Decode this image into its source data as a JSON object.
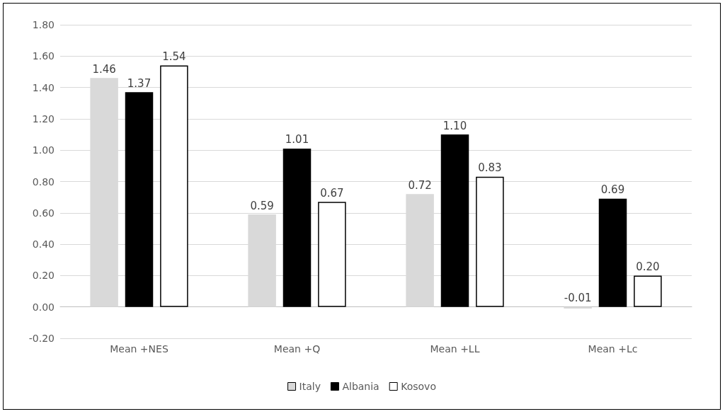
{
  "chart_data": {
    "type": "bar",
    "categories": [
      "Mean +NES",
      "Mean +Q",
      "Mean +LL",
      "Mean +Lc"
    ],
    "series": [
      {
        "name": "Italy",
        "color": "#d9d9d9",
        "values": [
          1.46,
          0.59,
          0.72,
          -0.01
        ],
        "value_labels": [
          "1.46",
          "0.59",
          "0.72",
          "-0.01"
        ]
      },
      {
        "name": "Albania",
        "color": "#000000",
        "values": [
          1.37,
          1.01,
          1.1,
          0.69
        ],
        "value_labels": [
          "1.37",
          "1.01",
          "1.10",
          "0.69"
        ]
      },
      {
        "name": "Kosovo",
        "color": "#ffffff",
        "values": [
          1.54,
          0.67,
          0.83,
          0.2
        ],
        "value_labels": [
          "1.54",
          "0.67",
          "0.83",
          "0.20"
        ]
      }
    ],
    "ylim": [
      -0.2,
      1.8
    ],
    "yticks": [
      {
        "value": -0.2,
        "label": "-0.20"
      },
      {
        "value": 0,
        "label": "0.00"
      },
      {
        "value": 0.2,
        "label": "0.20"
      },
      {
        "value": 0.4,
        "label": "0.40"
      },
      {
        "value": 0.6,
        "label": "0.60"
      },
      {
        "value": 0.8,
        "label": "0.80"
      },
      {
        "value": 1,
        "label": "1.00"
      },
      {
        "value": 1.2,
        "label": "1.20"
      },
      {
        "value": 1.4,
        "label": "1.40"
      },
      {
        "value": 1.6,
        "label": "1.60"
      },
      {
        "value": 1.8,
        "label": "1.80"
      }
    ],
    "grid": "y",
    "legend": "bottom"
  }
}
